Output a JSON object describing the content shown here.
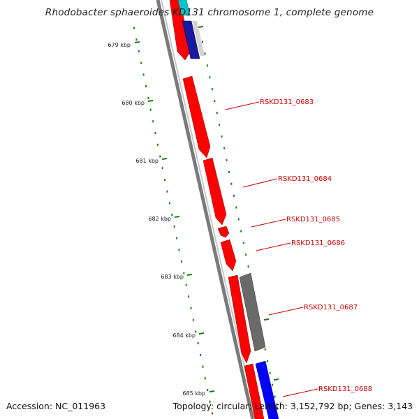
{
  "title": "Rhodobacter sphaeroides KD131 chromosome 1, complete genome",
  "accession_text": "Accession: NC_011963",
  "topology_text": "Topology: circular; Length: 3,152,792 bp; Genes: 3,143",
  "colors": {
    "gene_forward": "#ff0000",
    "gene_gray": "#666666",
    "gene_blue": "#0000ff",
    "gene_navy": "#0a0a8a",
    "gene_cyan": "#00c8c8",
    "tick_green": "#1a7a1a",
    "label_red": "#cc0000"
  },
  "kbp_ticks": [
    {
      "label": "679 kbp",
      "kbp": 679
    },
    {
      "label": "680 kbp",
      "kbp": 680
    },
    {
      "label": "681 kbp",
      "kbp": 681
    },
    {
      "label": "682 kbp",
      "kbp": 682
    },
    {
      "label": "683 kbp",
      "kbp": 683
    },
    {
      "label": "684 kbp",
      "kbp": 684
    },
    {
      "label": "685 kbp",
      "kbp": 685
    }
  ],
  "genes": [
    {
      "label": "RSKD131_0683"
    },
    {
      "label": "RSKD131_0684"
    },
    {
      "label": "RSKD131_0685"
    },
    {
      "label": "RSKD131_0686"
    },
    {
      "label": "RSKD131_0687"
    },
    {
      "label": "RSKD131_0688"
    }
  ]
}
